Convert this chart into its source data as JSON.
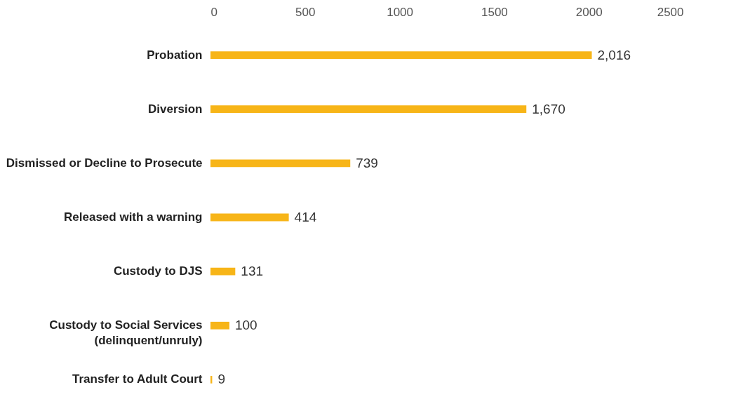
{
  "chart_data": {
    "type": "bar",
    "orientation": "horizontal",
    "categories": [
      "Probation",
      "Diversion",
      "Dismissed or Decline to Prosecute",
      "Released with a warning",
      "Custody to DJS",
      "Custody to Social Services\n(delinquent/unruly)",
      "Transfer to Adult Court"
    ],
    "values": [
      2016,
      1670,
      739,
      414,
      131,
      100,
      9
    ],
    "value_labels": [
      "2,016",
      "1,670",
      "739",
      "414",
      "131",
      "100",
      "9"
    ],
    "color": "#f7b518",
    "xlim": [
      0,
      2500
    ],
    "xticks": [
      0,
      500,
      1000,
      1500,
      2000,
      2500
    ],
    "grid": false
  }
}
